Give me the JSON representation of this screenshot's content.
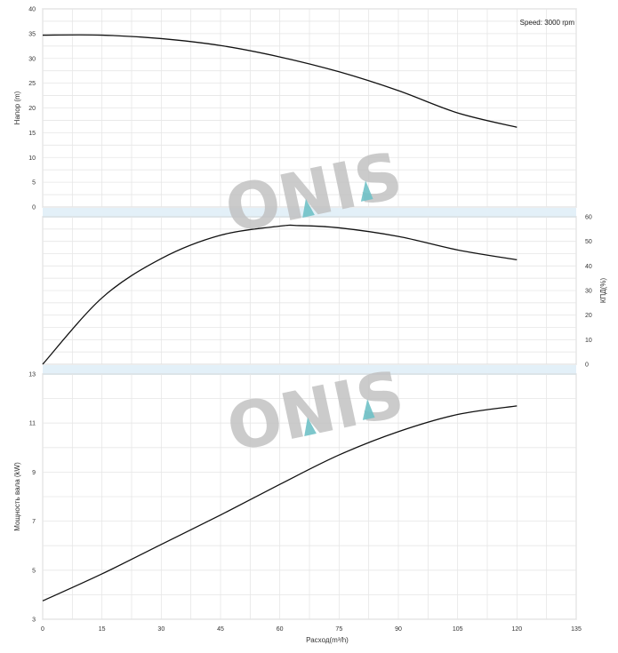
{
  "speed_label": "Speed: 3000 rpm",
  "watermark": "ONIS",
  "colors": {
    "curve": "#111111",
    "grid": "#e6e6e6",
    "band": "#e3f0f8",
    "watermark": "#c2c2c2",
    "accent": "#6fc1c6"
  },
  "chart_data": [
    {
      "type": "line",
      "ylabel": "Напор (m)",
      "xlim": [
        0,
        135
      ],
      "ylim": [
        0,
        40
      ],
      "yticks": [
        0,
        5,
        10,
        15,
        20,
        25,
        30,
        35,
        40
      ],
      "grid": true,
      "series": [
        {
          "x": [
            0,
            15,
            30,
            45,
            60,
            75,
            90,
            105,
            120
          ],
          "y": [
            34.7,
            34.7,
            34.0,
            32.6,
            30.3,
            27.3,
            23.5,
            19.0,
            16.1
          ]
        }
      ]
    },
    {
      "type": "line",
      "ylabel": "КПД(%)",
      "xlim": [
        0,
        135
      ],
      "ylim": [
        0,
        60
      ],
      "yticks": [
        0,
        10,
        20,
        30,
        40,
        50,
        60
      ],
      "grid": true,
      "series": [
        {
          "x": [
            0,
            15,
            30,
            45,
            60,
            65,
            75,
            90,
            105,
            120
          ],
          "y": [
            0,
            27,
            43,
            52.5,
            56.2,
            56.4,
            55.5,
            52,
            46.5,
            42.5
          ]
        }
      ]
    },
    {
      "type": "line",
      "ylabel": "Мощность вала (kW)",
      "xlabel": "Расход(m³/h)",
      "xlim": [
        0,
        135
      ],
      "ylim": [
        3,
        13
      ],
      "xticks": [
        0,
        15,
        30,
        45,
        60,
        75,
        90,
        105,
        120,
        135
      ],
      "yticks": [
        3,
        5,
        7,
        9,
        11,
        13
      ],
      "grid": true,
      "series": [
        {
          "x": [
            0,
            15,
            30,
            45,
            60,
            75,
            90,
            105,
            120
          ],
          "y": [
            3.75,
            4.85,
            6.05,
            7.25,
            8.5,
            9.7,
            10.65,
            11.35,
            11.7
          ]
        }
      ]
    }
  ]
}
